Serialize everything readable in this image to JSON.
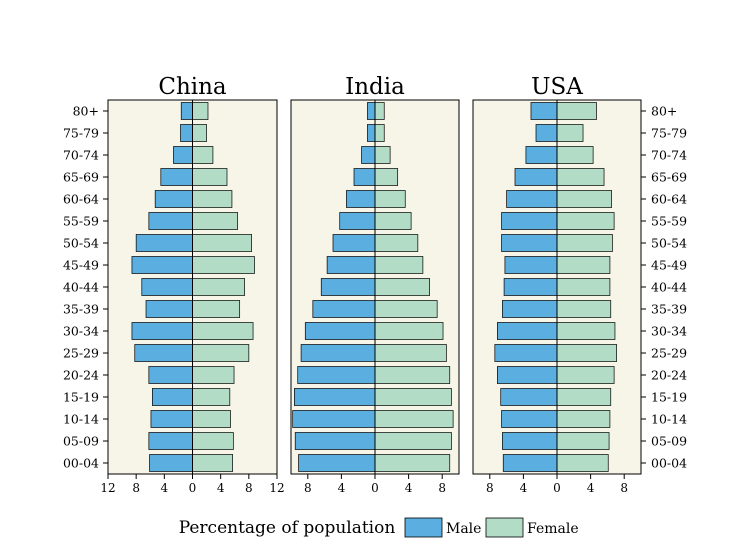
{
  "chart_data": {
    "type": "bar",
    "orientation": "horizontal-population-pyramid",
    "xlabel": "Percentage of population",
    "age_groups": [
      "00-04",
      "05-09",
      "10-14",
      "15-19",
      "20-24",
      "25-29",
      "30-34",
      "35-39",
      "40-44",
      "45-49",
      "50-54",
      "55-59",
      "60-64",
      "65-69",
      "70-74",
      "75-79",
      "80+"
    ],
    "legend": {
      "male": "Male",
      "female": "Female"
    },
    "colors": {
      "male": "#5aafe0",
      "female": "#b2dcc6",
      "panel_bg": "#f7f4e8",
      "axis": "#000000"
    },
    "panels": [
      {
        "title": "China",
        "xlim": 12,
        "ticks": [
          "12",
          "8",
          "4",
          "0",
          "4",
          "8",
          "12"
        ],
        "tick_values": [
          -12,
          -8,
          -4,
          0,
          4,
          8,
          12
        ],
        "male": [
          6.1,
          6.2,
          5.9,
          5.7,
          6.2,
          8.2,
          8.6,
          6.6,
          7.2,
          8.6,
          8.0,
          6.2,
          5.3,
          4.5,
          2.7,
          1.7,
          1.6
        ],
        "female": [
          5.7,
          5.8,
          5.4,
          5.3,
          5.9,
          8.0,
          8.6,
          6.7,
          7.4,
          8.8,
          8.4,
          6.4,
          5.6,
          4.9,
          2.9,
          2.0,
          2.2
        ]
      },
      {
        "title": "India",
        "xlim": 10,
        "ticks": [
          "8",
          "4",
          "0",
          "4",
          "8"
        ],
        "tick_values": [
          -8,
          -4,
          0,
          4,
          8
        ],
        "male": [
          9.1,
          9.5,
          9.8,
          9.6,
          9.2,
          8.8,
          8.3,
          7.4,
          6.4,
          5.7,
          5.0,
          4.2,
          3.4,
          2.5,
          1.6,
          0.9,
          0.9
        ],
        "female": [
          8.9,
          9.1,
          9.3,
          9.1,
          8.9,
          8.5,
          8.1,
          7.4,
          6.5,
          5.7,
          5.1,
          4.3,
          3.6,
          2.7,
          1.8,
          1.1,
          1.1
        ]
      },
      {
        "title": "USA",
        "xlim": 10,
        "ticks": [
          "8",
          "4",
          "0",
          "4",
          "8"
        ],
        "tick_values": [
          -8,
          -4,
          0,
          4,
          8
        ],
        "male": [
          6.4,
          6.5,
          6.6,
          6.7,
          7.1,
          7.4,
          7.1,
          6.5,
          6.3,
          6.2,
          6.6,
          6.6,
          6.0,
          5.0,
          3.7,
          2.5,
          3.1
        ],
        "female": [
          6.1,
          6.2,
          6.3,
          6.4,
          6.8,
          7.1,
          6.9,
          6.4,
          6.3,
          6.3,
          6.6,
          6.8,
          6.5,
          5.6,
          4.3,
          3.1,
          4.7
        ]
      }
    ]
  }
}
